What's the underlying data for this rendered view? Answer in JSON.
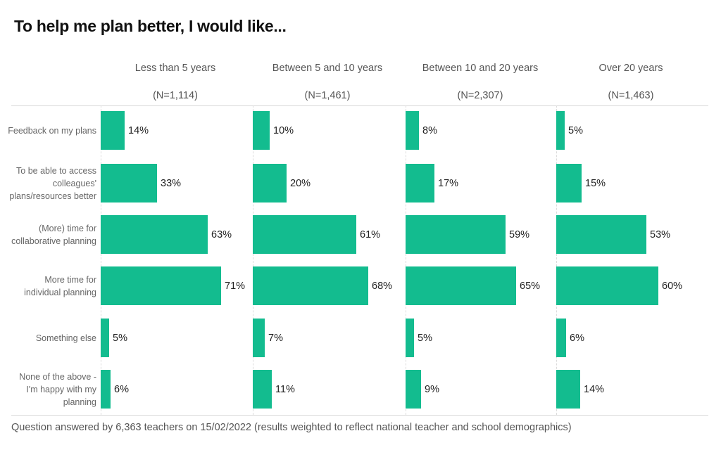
{
  "chart_data": {
    "type": "bar",
    "orientation": "horizontal",
    "title": "To help me plan better, I would like...",
    "categories": [
      "Feedback on my plans",
      "To be able to access colleagues' plans/resources better",
      "(More) time for collaborative planning",
      "More time for individual planning",
      "Something else",
      "None of the above - I'm happy with my planning"
    ],
    "series": [
      {
        "name": "Less than 5 years",
        "n_label": "(N=1,114)",
        "values": [
          14,
          33,
          63,
          71,
          5,
          6
        ],
        "labels": [
          "14%",
          "33%",
          "63%",
          "71%",
          "5%",
          "6%"
        ]
      },
      {
        "name": "Between 5 and 10 years",
        "n_label": "(N=1,461)",
        "values": [
          10,
          20,
          61,
          68,
          7,
          11
        ],
        "labels": [
          "10%",
          "20%",
          "61%",
          "68%",
          "7%",
          "11%"
        ]
      },
      {
        "name": "Between 10 and 20 years",
        "n_label": "(N=2,307)",
        "values": [
          8,
          17,
          59,
          65,
          5,
          9
        ],
        "labels": [
          "8%",
          "17%",
          "59%",
          "65%",
          "5%",
          "9%"
        ]
      },
      {
        "name": "Over 20 years",
        "n_label": "(N=1,463)",
        "values": [
          5,
          15,
          53,
          60,
          6,
          14
        ],
        "labels": [
          "5%",
          "15%",
          "53%",
          "60%",
          "6%",
          "14%"
        ]
      }
    ],
    "xlim": [
      0,
      100
    ],
    "unit": "%",
    "grid": false,
    "bar_color": "#13bc8f",
    "footnote": "Question answered by 6,363 teachers on 15/02/2022 (results weighted to reflect national teacher and school demographics)"
  }
}
